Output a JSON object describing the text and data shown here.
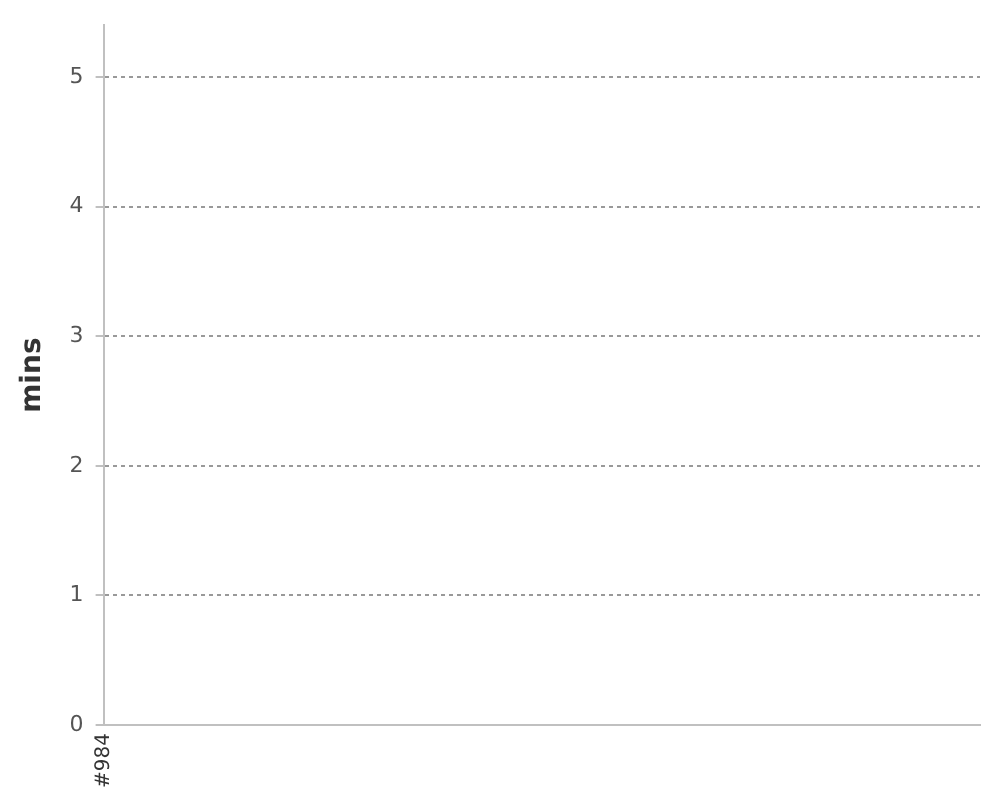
{
  "chart_data": {
    "type": "line",
    "ylabel": "mins",
    "categories": [
      "#984"
    ],
    "values": [
      null
    ],
    "ylim": [
      0,
      5.4
    ],
    "yticks": [
      0,
      1,
      2,
      3,
      4,
      5
    ],
    "grid": "y"
  }
}
